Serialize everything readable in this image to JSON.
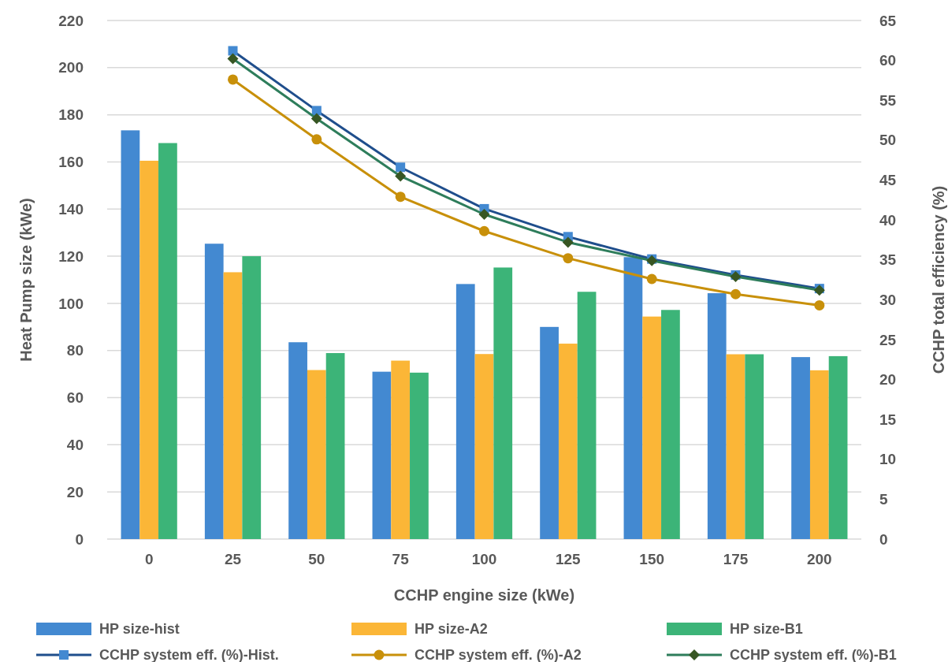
{
  "chart_data": {
    "type": "bar",
    "xlabel": "CCHP engine size (kWe)",
    "ylabel": "Heat Pump size (kWe)",
    "y2label": "CCHP total efficiency (%)",
    "categories": [
      "0",
      "25",
      "50",
      "75",
      "100",
      "125",
      "150",
      "175",
      "200"
    ],
    "series": [
      {
        "name": "HP size-hist",
        "color": "#4389d1",
        "values": [
          173.4,
          125.3,
          83.5,
          71,
          108.2,
          90,
          119.6,
          104.3,
          77.2
        ]
      },
      {
        "name": "HP size-A2",
        "color": "#fbb637",
        "values": [
          160.5,
          113.2,
          71.7,
          75.7,
          78.5,
          82.9,
          94.4,
          78.4,
          71.6
        ]
      },
      {
        "name": "HP size-B1",
        "color": "#3cb478",
        "values": [
          168,
          120,
          78.9,
          70.6,
          115.2,
          104.9,
          97.2,
          78.4,
          77.6
        ]
      },
      {
        "name": "CCHP system eff. (%)-Hist.",
        "type": "line",
        "axis": "y2",
        "marker": "square",
        "color": "#1f4e8c",
        "values": [
          null,
          61.2,
          53.7,
          46.6,
          41.4,
          37.9,
          35.1,
          33.1,
          31.4
        ]
      },
      {
        "name": "CCHP system eff. (%)-A2",
        "type": "line",
        "axis": "y2",
        "marker": "circle",
        "color": "#c8900a",
        "values": [
          null,
          57.6,
          50.1,
          42.9,
          38.6,
          35.2,
          32.6,
          30.7,
          29.3
        ]
      },
      {
        "name": "CCHP system eff. (%)-B1",
        "type": "line",
        "axis": "y2",
        "marker": "diamond",
        "color": "#2e7d5b",
        "values": [
          null,
          60.2,
          52.7,
          45.5,
          40.7,
          37.2,
          34.9,
          32.9,
          31.2
        ]
      }
    ],
    "ylim": [
      0,
      220
    ],
    "yticks": [
      0,
      20,
      40,
      60,
      80,
      100,
      120,
      140,
      160,
      180,
      200,
      220
    ],
    "y2lim": [
      0,
      65
    ],
    "y2ticks": [
      0,
      5,
      10,
      15,
      20,
      25,
      30,
      35,
      40,
      45,
      50,
      55,
      60,
      65
    ],
    "grid": "y",
    "legend": "bottom"
  }
}
